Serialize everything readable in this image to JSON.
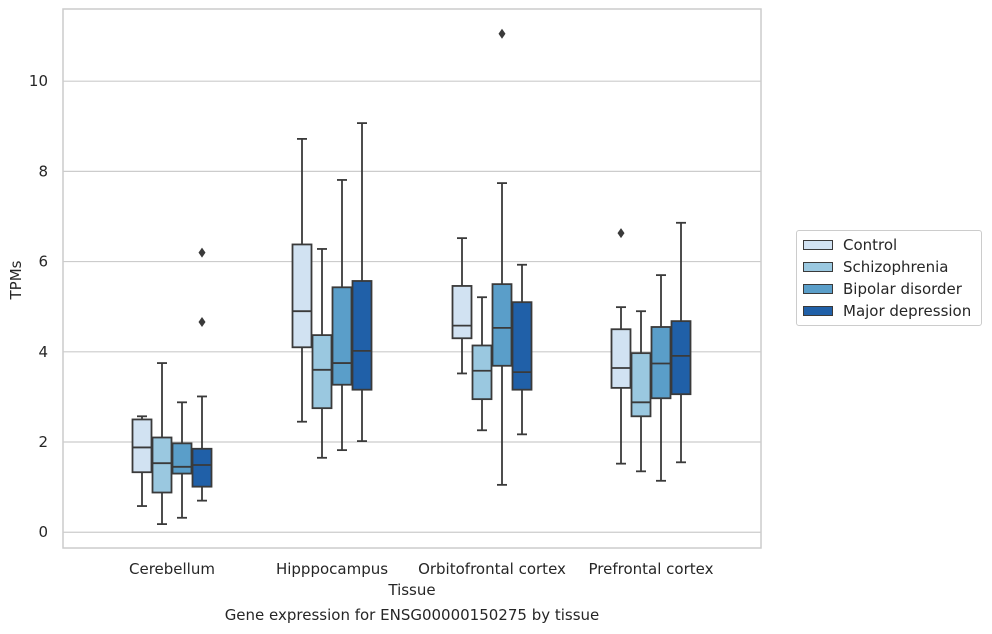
{
  "chart_data": {
    "type": "box",
    "title": "",
    "xlabel": "Tissue",
    "ylabel": "TPMs",
    "caption": "Gene expression for ENSG00000150275 by tissue",
    "ylim": [
      -0.35,
      11.6
    ],
    "yticks": [
      0,
      2,
      4,
      6,
      8,
      10
    ],
    "grid": true,
    "legend_position": "right",
    "categories": [
      "Cerebellum",
      "Hipppocampus",
      "Orbitofrontal cortex",
      "Prefrontal cortex"
    ],
    "series": [
      {
        "name": "Control",
        "color": "#d1e2f2",
        "boxes": [
          {
            "whislo": 0.58,
            "q1": 1.33,
            "med": 1.88,
            "q3": 2.5,
            "whishi": 2.57,
            "fliers": []
          },
          {
            "whislo": 2.45,
            "q1": 4.1,
            "med": 4.9,
            "q3": 6.38,
            "whishi": 8.72,
            "fliers": []
          },
          {
            "whislo": 3.52,
            "q1": 4.3,
            "med": 4.58,
            "q3": 5.46,
            "whishi": 6.52,
            "fliers": []
          },
          {
            "whislo": 1.52,
            "q1": 3.2,
            "med": 3.64,
            "q3": 4.5,
            "whishi": 4.99,
            "fliers": [
              6.63
            ]
          }
        ]
      },
      {
        "name": "Schizophrenia",
        "color": "#9ac8e0",
        "boxes": [
          {
            "whislo": 0.18,
            "q1": 0.88,
            "med": 1.53,
            "q3": 2.1,
            "whishi": 3.75,
            "fliers": []
          },
          {
            "whislo": 1.65,
            "q1": 2.75,
            "med": 3.6,
            "q3": 4.37,
            "whishi": 6.28,
            "fliers": []
          },
          {
            "whislo": 2.26,
            "q1": 2.95,
            "med": 3.58,
            "q3": 4.14,
            "whishi": 5.21,
            "fliers": []
          },
          {
            "whislo": 1.35,
            "q1": 2.57,
            "med": 2.88,
            "q3": 3.97,
            "whishi": 4.9,
            "fliers": []
          }
        ]
      },
      {
        "name": "Bipolar disorder",
        "color": "#5a9ec9",
        "boxes": [
          {
            "whislo": 0.32,
            "q1": 1.3,
            "med": 1.45,
            "q3": 1.97,
            "whishi": 2.88,
            "fliers": []
          },
          {
            "whislo": 1.82,
            "q1": 3.27,
            "med": 3.75,
            "q3": 5.43,
            "whishi": 7.81,
            "fliers": []
          },
          {
            "whislo": 1.05,
            "q1": 3.69,
            "med": 4.53,
            "q3": 5.5,
            "whishi": 7.74,
            "fliers": [
              11.05
            ]
          },
          {
            "whislo": 1.14,
            "q1": 2.97,
            "med": 3.74,
            "q3": 4.55,
            "whishi": 5.7,
            "fliers": []
          }
        ]
      },
      {
        "name": "Major depression",
        "color": "#2060a8",
        "boxes": [
          {
            "whislo": 0.7,
            "q1": 1.01,
            "med": 1.49,
            "q3": 1.85,
            "whishi": 3.01,
            "fliers": [
              4.66,
              6.2
            ]
          },
          {
            "whislo": 2.02,
            "q1": 3.16,
            "med": 4.02,
            "q3": 5.57,
            "whishi": 9.07,
            "fliers": []
          },
          {
            "whislo": 2.17,
            "q1": 3.16,
            "med": 3.55,
            "q3": 5.1,
            "whishi": 5.93,
            "fliers": []
          },
          {
            "whislo": 1.55,
            "q1": 3.06,
            "med": 3.91,
            "q3": 4.68,
            "whishi": 6.86,
            "fliers": []
          }
        ]
      }
    ]
  }
}
